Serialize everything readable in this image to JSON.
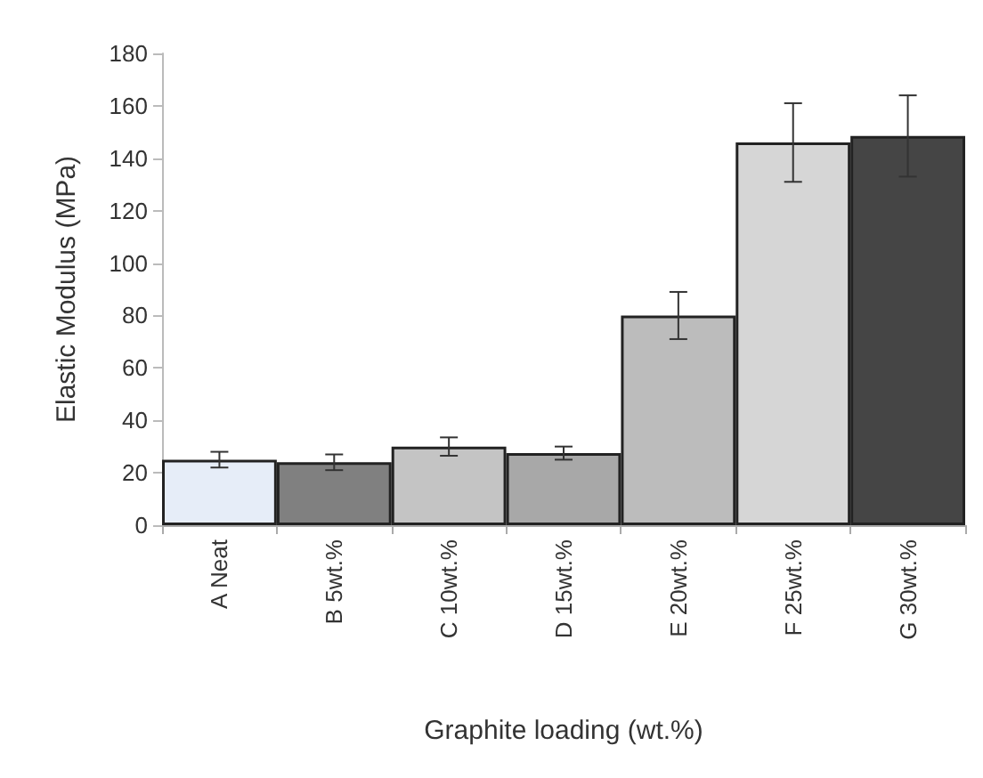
{
  "chart_data": {
    "type": "bar",
    "xlabel": "Graphite loading (wt.%)",
    "ylabel": "Elastic Modulus (MPa)",
    "categories": [
      "A Neat",
      "B 5wt.%",
      "C 10wt.%",
      "D 15wt.%",
      "E 20wt.%",
      "F 25wt.%",
      "G 30wt.%"
    ],
    "values": [
      25,
      24,
      30,
      27.5,
      80,
      146,
      148.5
    ],
    "errors": [
      3,
      3,
      3.5,
      2.5,
      9,
      15,
      15.5
    ],
    "colors": [
      "#e6edf8",
      "#808080",
      "#c4c4c4",
      "#a8a8a8",
      "#bcbcbc",
      "#d6d6d6",
      "#454545"
    ],
    "ylim": [
      0,
      180
    ],
    "yticks": [
      0,
      20,
      40,
      60,
      80,
      100,
      120,
      140,
      160,
      180
    ],
    "grid": false
  }
}
